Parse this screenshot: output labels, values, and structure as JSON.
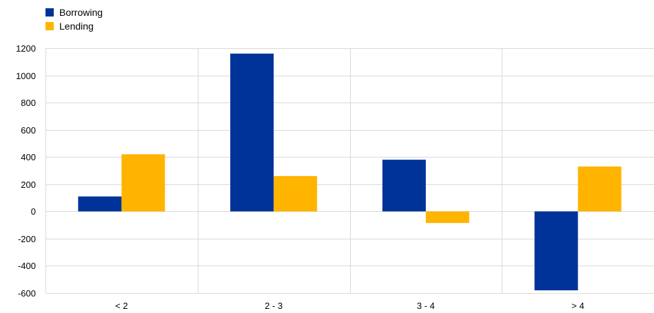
{
  "chart_data": {
    "type": "bar",
    "categories": [
      "< 2",
      "2  -  3",
      "3 - 4",
      "> 4"
    ],
    "series": [
      {
        "name": "Borrowing",
        "color": "#003399",
        "values": [
          110,
          1160,
          380,
          -580
        ]
      },
      {
        "name": "Lending",
        "color": "#FFB400",
        "values": [
          420,
          260,
          -85,
          330
        ]
      }
    ],
    "ylim": [
      -600,
      1200
    ],
    "yticks": [
      -600,
      -400,
      -200,
      0,
      200,
      400,
      600,
      800,
      1000,
      1200
    ],
    "grid": true,
    "legend_position": "top-left"
  }
}
